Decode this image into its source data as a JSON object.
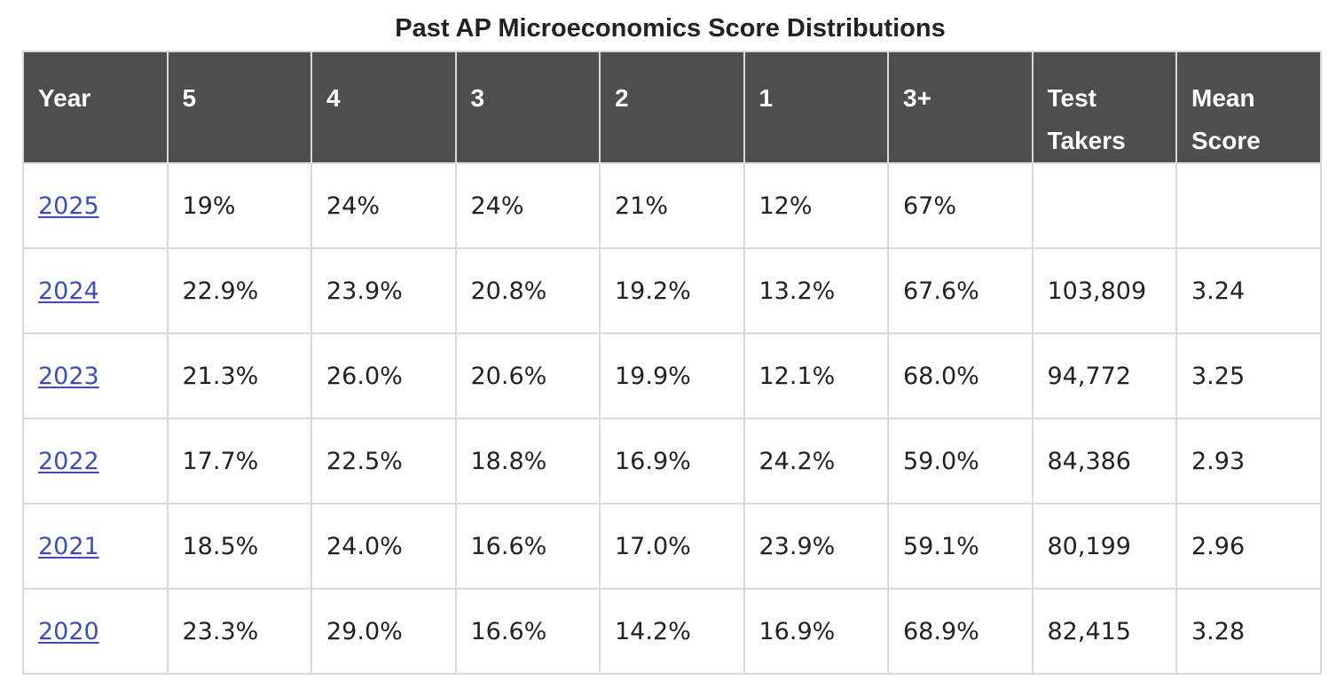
{
  "title": "Past AP Microeconomics Score Distributions",
  "columns": [
    "Year",
    "5",
    "4",
    "3",
    "2",
    "1",
    "3+",
    "Test Takers",
    "Mean Score"
  ],
  "rows": [
    [
      "2025",
      "19%",
      "24%",
      "24%",
      "21%",
      "12%",
      "67%",
      "",
      ""
    ],
    [
      "2024",
      "22.9%",
      "23.9%",
      "20.8%",
      "19.2%",
      "13.2%",
      "67.6%",
      "103,809",
      "3.24"
    ],
    [
      "2023",
      "21.3%",
      "26.0%",
      "20.6%",
      "19.9%",
      "12.1%",
      "68.0%",
      "94,772",
      "3.25"
    ],
    [
      "2022",
      "17.7%",
      "22.5%",
      "18.8%",
      "16.9%",
      "24.2%",
      "59.0%",
      "84,386",
      "2.93"
    ],
    [
      "2021",
      "18.5%",
      "24.0%",
      "16.6%",
      "17.0%",
      "23.9%",
      "59.1%",
      "80,199",
      "2.96"
    ],
    [
      "2020",
      "23.3%",
      "29.0%",
      "16.6%",
      "14.2%",
      "16.9%",
      "68.9%",
      "82,415",
      "3.28"
    ]
  ],
  "colors": {
    "header_bg": "#4e4e4e",
    "header_text": "#ffffff",
    "link": "#3d4fb5",
    "border": "#d9d9d9"
  }
}
